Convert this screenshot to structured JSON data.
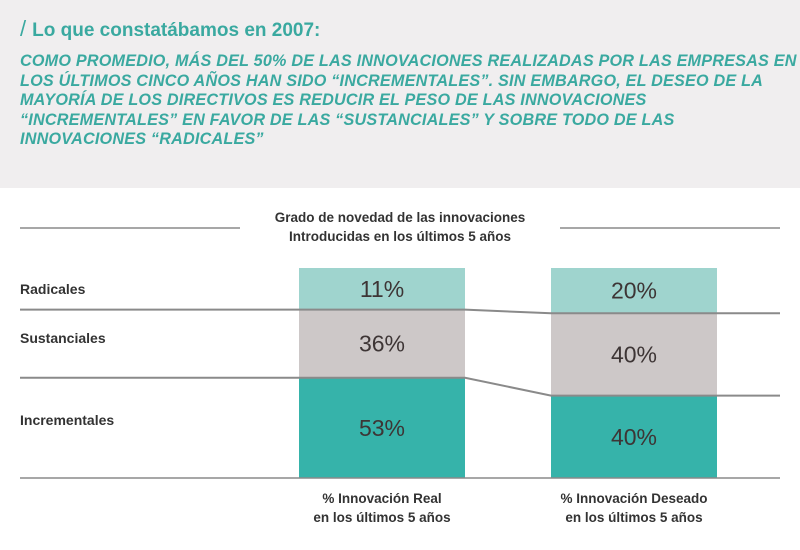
{
  "header": {
    "title": "Lo que constatábamos en 2007:",
    "body": "COMO PROMEDIO, MÁS DEL 50% DE LAS INNOVACIONES REALIZADAS POR LAS EMPRESAS EN LOS ÚLTIMOS CINCO AÑOS HAN SIDO “INCREMENTALES”. SIN EMBARGO, EL DESEO DE LA MAYORÍA DE LOS DIRECTIVOS ES REDUCIR EL PESO DE LAS INNOVACIONES “INCREMENTALES” EN FAVOR DE LAS “SUSTANCIALES” Y SOBRE TODO DE LAS INNOVACIONES “RADICALES”"
  },
  "chart_data": {
    "type": "bar",
    "stacked": true,
    "title": [
      "Grado de novedad de las innovaciones",
      "Introducidas en los últimos 5 años"
    ],
    "categories": [
      [
        "% Innovación Real",
        "en los últimos 5 años"
      ],
      [
        "% Innovación Deseado",
        "en los últimos 5 años"
      ]
    ],
    "series": [
      {
        "name": "Incrementales",
        "values": [
          53,
          40
        ],
        "labels": [
          "53%",
          "40%"
        ],
        "color": "#36b3aa"
      },
      {
        "name": "Sustanciales",
        "values": [
          36,
          40
        ],
        "labels": [
          "36%",
          "40%"
        ],
        "color": "#cdc8c8"
      },
      {
        "name": "Radicales",
        "values": [
          11,
          20
        ],
        "labels": [
          "11%",
          "20%"
        ],
        "color": "#9fd4ce"
      }
    ],
    "ylabel": "",
    "ylim": [
      0,
      100
    ]
  }
}
